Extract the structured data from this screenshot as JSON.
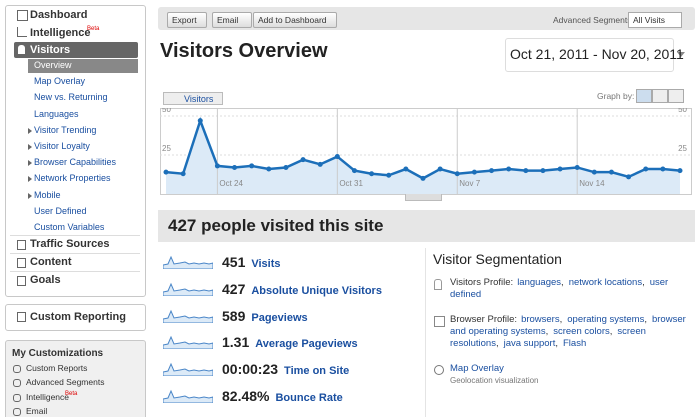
{
  "sidebar": {
    "nav": [
      {
        "label": "Dashboard"
      },
      {
        "label": "Intelligence",
        "badge": "Beta"
      },
      {
        "label": "Visitors"
      }
    ],
    "visitors_menu": [
      "Overview",
      "Map Overlay",
      "New vs. Returning",
      "Languages",
      "Visitor Trending",
      "Visitor Loyalty",
      "Browser Capabilities",
      "Network Properties",
      "Mobile",
      "User Defined",
      "Custom Variables"
    ],
    "sections": [
      "Traffic Sources",
      "Content",
      "Goals"
    ],
    "custom_reporting": "Custom Reporting",
    "my_customizations": {
      "title": "My Customizations",
      "items": [
        {
          "label": "Custom Reports"
        },
        {
          "label": "Advanced Segments"
        },
        {
          "label": "Intelligence",
          "badge": "Beta"
        },
        {
          "label": "Email"
        }
      ]
    }
  },
  "toolbar": {
    "buttons": [
      "Export",
      "Email",
      "Add to Dashboard"
    ],
    "segments_label": "Advanced Segments:",
    "segment": "All Visits"
  },
  "header": {
    "title": "Visitors Overview",
    "date_range": "Oct 21, 2011 - Nov 20, 2011"
  },
  "chart_data": {
    "type": "line",
    "graph_by": "Graph by:",
    "categories": [
      null,
      null,
      null,
      "Oct 24",
      null,
      null,
      null,
      null,
      null,
      null,
      "Oct 31",
      null,
      null,
      null,
      null,
      null,
      null,
      "Nov 7",
      null,
      null,
      null,
      null,
      null,
      null,
      "Nov 14",
      null,
      null,
      null,
      null,
      null,
      null
    ],
    "series": [
      {
        "name": "Visitors",
        "color": "#1c6fb9",
        "values": [
          14,
          13,
          47,
          18,
          17,
          18,
          16,
          17,
          22,
          19,
          24,
          15,
          13,
          12,
          16,
          10,
          16,
          13,
          14,
          15,
          16,
          15,
          15,
          16,
          17,
          14,
          14,
          11,
          16,
          16,
          15
        ]
      }
    ],
    "ylim": [
      0,
      50
    ],
    "yticks": [
      25,
      50
    ],
    "grid": true
  },
  "summary": {
    "title": "427 people visited this site",
    "metrics": [
      {
        "value": "451",
        "label": "Visits"
      },
      {
        "value": "427",
        "label": "Absolute Unique Visitors"
      },
      {
        "value": "589",
        "label": "Pageviews"
      },
      {
        "value": "1.31",
        "label": "Average Pageviews"
      },
      {
        "value": "00:00:23",
        "label": "Time on Site"
      },
      {
        "value": "82.48%",
        "label": "Bounce Rate"
      }
    ]
  },
  "segmentation": {
    "title": "Visitor Segmentation",
    "separator": ",",
    "visitors_profile": {
      "label": "Visitors Profile:",
      "links": [
        "languages",
        "network locations",
        "user defined"
      ]
    },
    "browser_profile": {
      "label": "Browser Profile:",
      "links": [
        "browsers",
        "operating systems",
        "browser and operating systems",
        "screen colors",
        "screen resolutions",
        "java support",
        "Flash"
      ]
    },
    "map_overlay": {
      "label": "Map Overlay",
      "description": "Geolocation visualization"
    }
  }
}
